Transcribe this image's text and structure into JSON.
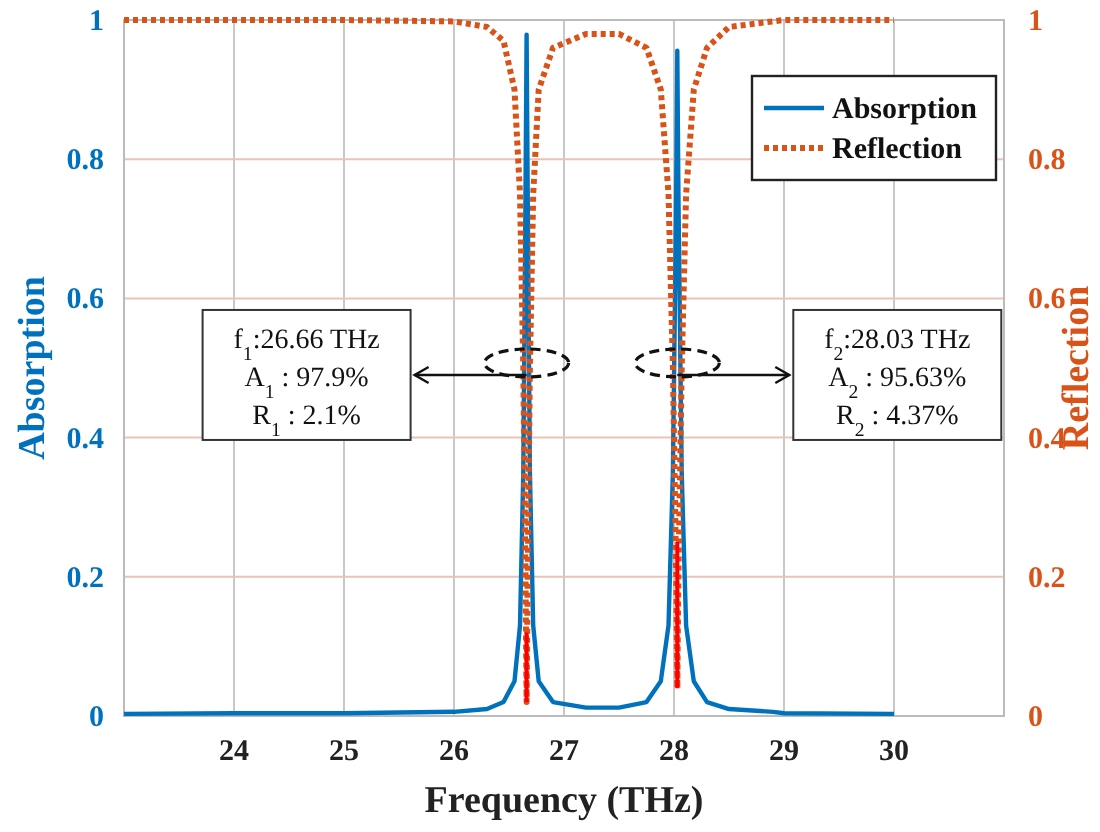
{
  "chart_data": {
    "type": "line",
    "xlabel": "Frequency (THz)",
    "ylabel": "Absorption",
    "y2label": "Reflection",
    "xlim": [
      23,
      31
    ],
    "xticks": [
      24,
      25,
      26,
      27,
      28,
      29,
      30
    ],
    "ylim": [
      0,
      1
    ],
    "yticks": [
      0,
      0.2,
      0.4,
      0.6,
      0.8,
      1
    ],
    "y2lim": [
      0,
      1
    ],
    "y2ticks": [
      0,
      0.2,
      0.4,
      0.6,
      0.8,
      1
    ],
    "grid": true,
    "legend": "top right",
    "marker": "none",
    "series": [
      {
        "name": "Absorption",
        "color": "#0072bd",
        "line_style": "solid",
        "x": [
          23,
          24,
          25,
          25.5,
          26,
          26.3,
          26.45,
          26.55,
          26.6,
          26.63,
          26.65,
          26.66,
          26.67,
          26.69,
          26.72,
          26.77,
          26.9,
          27.2,
          27.5,
          27.75,
          27.88,
          27.95,
          27.99,
          28.02,
          28.03,
          28.04,
          28.07,
          28.11,
          28.18,
          28.3,
          28.5,
          28.9,
          29,
          30
        ],
        "values": [
          0.003,
          0.004,
          0.004,
          0.005,
          0.006,
          0.01,
          0.02,
          0.05,
          0.13,
          0.35,
          0.75,
          0.979,
          0.75,
          0.35,
          0.13,
          0.05,
          0.02,
          0.012,
          0.012,
          0.02,
          0.05,
          0.13,
          0.35,
          0.75,
          0.956,
          0.75,
          0.35,
          0.13,
          0.05,
          0.02,
          0.01,
          0.006,
          0.004,
          0.003
        ]
      },
      {
        "name": "Reflection",
        "color": "#d95319",
        "line_style": "dotted",
        "axis": "y2",
        "x": [
          23,
          24,
          25,
          26,
          26.3,
          26.45,
          26.55,
          26.6,
          26.63,
          26.65,
          26.66,
          26.67,
          26.69,
          26.72,
          26.77,
          26.9,
          27.2,
          27.5,
          27.75,
          27.88,
          27.95,
          27.99,
          28.02,
          28.03,
          28.04,
          28.07,
          28.11,
          28.18,
          28.3,
          28.5,
          29,
          30
        ],
        "values": [
          1,
          1,
          1,
          0.998,
          0.99,
          0.97,
          0.9,
          0.75,
          0.5,
          0.2,
          0.02,
          0.2,
          0.5,
          0.75,
          0.9,
          0.96,
          0.98,
          0.98,
          0.96,
          0.9,
          0.75,
          0.5,
          0.2,
          0.04,
          0.2,
          0.5,
          0.75,
          0.9,
          0.96,
          0.99,
          1,
          1
        ]
      },
      {
        "color": "#ff0000",
        "line_style": "solid",
        "axis": "y2",
        "x": [
          26.66,
          26.66
        ],
        "values": [
          0.02,
          0.12
        ]
      },
      {
        "color": "#ff0000",
        "line_style": "solid",
        "axis": "y2",
        "x": [
          28.03,
          28.03
        ],
        "values": [
          0.04,
          0.25
        ]
      }
    ],
    "annotations": [
      {
        "text": "f$_{1}$:26.66 THz",
        "x": 26.66,
        "y": 0.49
      },
      "A$_{1}$ : 97.9%",
      "R$_{1}$ : 2.1%",
      {
        "text": "f$_{2}$:28.03 THz",
        "x": 28.03,
        "y": 0.49
      },
      "A$_{2}$ : 95.63%",
      "R$_{2}$ : 4.37%"
    ]
  }
}
